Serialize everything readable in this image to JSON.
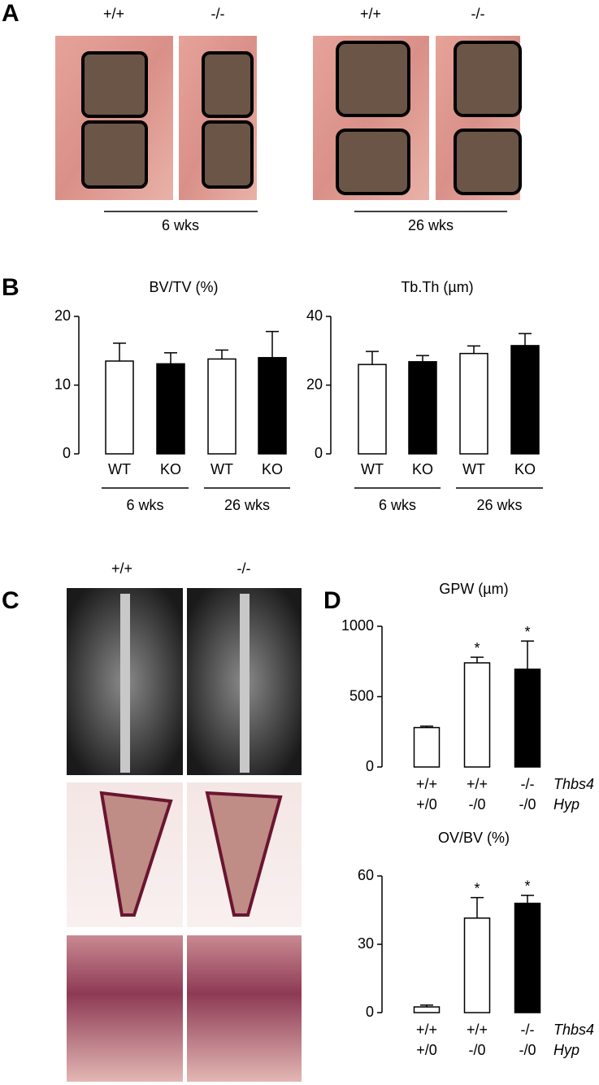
{
  "panel_labels": [
    "A",
    "B",
    "C",
    "D"
  ],
  "panel_a": {
    "genotypes": [
      "+/+",
      "-/-",
      "+/+",
      "-/-"
    ],
    "ages": [
      "6 wks",
      "26 wks"
    ]
  },
  "panel_c": {
    "genotypes": [
      "+/+",
      "-/-"
    ]
  },
  "chart_data": [
    {
      "type": "bar",
      "title": "BV/TV (%)",
      "categories": [
        "WT",
        "KO",
        "WT",
        "KO"
      ],
      "values": [
        13.5,
        13.1,
        13.8,
        14.0
      ],
      "errors": [
        2.6,
        1.6,
        1.3,
        3.8
      ],
      "colors": [
        "#ffffff",
        "#000000",
        "#ffffff",
        "#000000"
      ],
      "group_labels": [
        "6 wks",
        "26 wks"
      ],
      "ylim": [
        0,
        20
      ],
      "yticks": [
        0,
        10,
        20
      ]
    },
    {
      "type": "bar",
      "title": "Tb.Th (µm)",
      "categories": [
        "WT",
        "KO",
        "WT",
        "KO"
      ],
      "values": [
        26,
        26.8,
        29.2,
        31.5
      ],
      "errors": [
        3.8,
        1.8,
        2.2,
        3.5
      ],
      "colors": [
        "#ffffff",
        "#000000",
        "#ffffff",
        "#000000"
      ],
      "group_labels": [
        "6 wks",
        "26 wks"
      ],
      "ylim": [
        0,
        40
      ],
      "yticks": [
        0,
        20,
        40
      ]
    },
    {
      "type": "bar",
      "title": "GPW (µm)",
      "categories": [
        [
          "+/+",
          "+/0"
        ],
        [
          "+/+",
          "-/0"
        ],
        [
          "-/-",
          "-/0"
        ]
      ],
      "row_labels": [
        "Thbs4",
        "Hyp"
      ],
      "values": [
        280,
        740,
        695
      ],
      "errors": [
        10,
        40,
        200
      ],
      "colors": [
        "#ffffff",
        "#ffffff",
        "#000000"
      ],
      "significance": [
        null,
        "*",
        "*"
      ],
      "ylim": [
        0,
        1000
      ],
      "yticks": [
        0,
        500,
        1000
      ]
    },
    {
      "type": "bar",
      "title": "OV/BV (%)",
      "categories": [
        [
          "+/+",
          "+/0"
        ],
        [
          "+/+",
          "-/0"
        ],
        [
          "-/-",
          "-/0"
        ]
      ],
      "row_labels": [
        "Thbs4",
        "Hyp"
      ],
      "values": [
        2.5,
        41.5,
        48
      ],
      "errors": [
        0.8,
        9,
        3.5
      ],
      "colors": [
        "#ffffff",
        "#ffffff",
        "#000000"
      ],
      "significance": [
        null,
        "*",
        "*"
      ],
      "ylim": [
        0,
        60
      ],
      "yticks": [
        0,
        30,
        60
      ]
    }
  ]
}
